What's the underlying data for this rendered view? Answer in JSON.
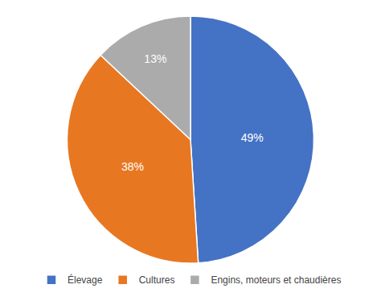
{
  "chart_data": {
    "type": "pie",
    "categories": [
      "Élevage",
      "Cultures",
      "Engins, moteurs et chaudières"
    ],
    "values": [
      49,
      38,
      13
    ],
    "value_labels": [
      "49%",
      "38%",
      "13%"
    ],
    "colors": [
      "#4472C4",
      "#E87722",
      "#ABABAB"
    ],
    "data_labels": true,
    "legend": "bottom"
  }
}
